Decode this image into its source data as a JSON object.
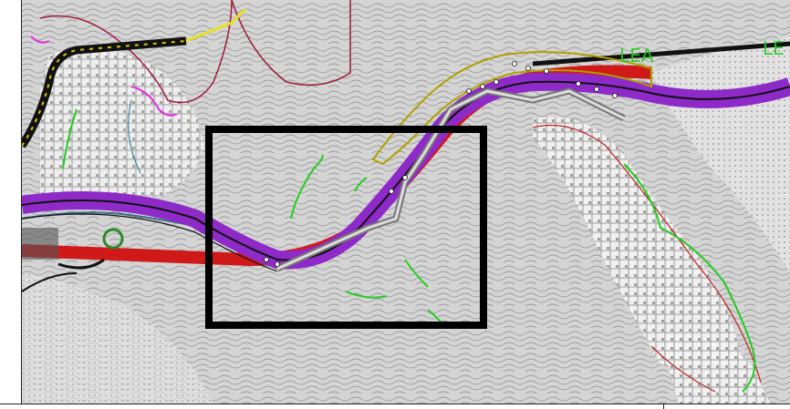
{
  "map": {
    "labels": [
      {
        "id": "label-lea",
        "text": "LEA"
      },
      {
        "id": "label-le",
        "text": "LE"
      }
    ],
    "colors": {
      "background": "#d4d4d4",
      "contour": "#8a8a8a",
      "urban": "#f4f4f4",
      "urban_lines": "#6a6a6a",
      "road_corridor_purple": "#8e2ac8",
      "road_centerline": "#111111",
      "construction_red": "#d01010",
      "parcel_boundary": "#9c1a3a",
      "green_lines": "#22cc22",
      "yellow_line": "#e8e020",
      "magenta_boundary": "#e030e0",
      "frame_black": "#000000"
    },
    "icons": [
      "selection-rectangle",
      "road-corridor",
      "river-line",
      "town-area"
    ]
  }
}
